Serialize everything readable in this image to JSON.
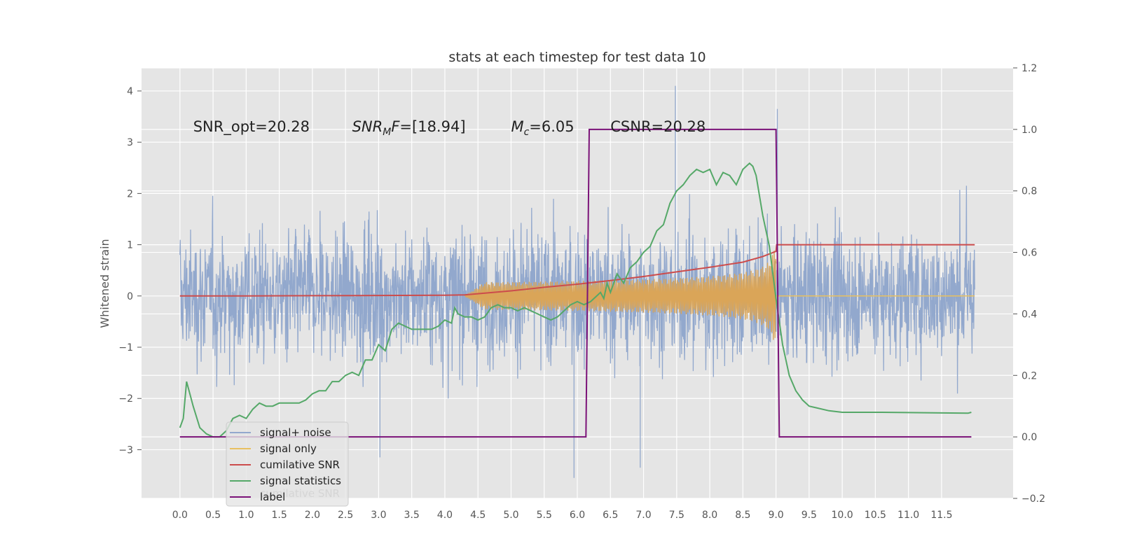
{
  "chart_data": {
    "type": "line",
    "title": "stats at each timestep for test data 10",
    "ylabel": "Whitened strain",
    "xlim": [
      -0.58,
      12.58
    ],
    "ylim": [
      -3.95,
      4.45
    ],
    "y2lim": [
      -0.2,
      1.2
    ],
    "xticks": [
      0.0,
      0.5,
      1.0,
      1.5,
      2.0,
      2.5,
      3.0,
      3.5,
      4.0,
      4.5,
      5.0,
      5.5,
      6.0,
      6.5,
      7.0,
      7.5,
      8.0,
      8.5,
      9.0,
      9.5,
      10.0,
      10.5,
      11.0,
      11.5
    ],
    "xtick_labels": [
      "0.0",
      "0.5",
      "1.0",
      "1.5",
      "2.0",
      "2.5",
      "3.0",
      "3.5",
      "4.0",
      "4.5",
      "5.0",
      "5.5",
      "6.0",
      "6.5",
      "7.0",
      "7.5",
      "8.0",
      "8.5",
      "9.0",
      "9.5",
      "10.0",
      "10.5",
      "11.0",
      "11.5"
    ],
    "yticks": [
      -3,
      -2,
      -1,
      0,
      1,
      2,
      3,
      4
    ],
    "ytick_labels": [
      "−3",
      "−2",
      "−1",
      "0",
      "1",
      "2",
      "3",
      "4"
    ],
    "y2ticks": [
      -0.2,
      0.0,
      0.2,
      0.4,
      0.6,
      0.8,
      1.0,
      1.2
    ],
    "y2tick_labels": [
      "−0.2",
      "0.0",
      "0.2",
      "0.4",
      "0.6",
      "0.8",
      "1.0",
      "1.2"
    ],
    "grid": true,
    "legend_placement": "lower-left",
    "annotations": [
      {
        "text": "SNR_opt=20.28",
        "x": 0.2,
        "y": 3.3
      },
      {
        "text": "SNR_M F=[18.94]",
        "x": 2.6,
        "y": 3.3
      },
      {
        "text": "M_c=6.05",
        "x": 5.0,
        "y": 3.3
      },
      {
        "text": "CSNR=20.28",
        "x": 6.5,
        "y": 3.3
      }
    ],
    "noise": {
      "x_start": 0.0,
      "x_end": 12.0,
      "typical_band": [
        -2.3,
        2.3
      ],
      "extreme_max": 4.1,
      "extreme_min": -3.55,
      "color": "#92a8cd"
    },
    "signal_only": {
      "x_start": 4.3,
      "merger_x": 9.0,
      "peak_amplitude": 1.05,
      "color": "#daa558"
    },
    "series": [
      {
        "name": "cumilative SNR",
        "axis": "left",
        "color": "#cc4c4c",
        "x": [
          0.0,
          1.0,
          2.0,
          3.0,
          4.0,
          4.3,
          5.0,
          5.5,
          6.0,
          6.5,
          7.0,
          7.5,
          8.0,
          8.5,
          8.8,
          9.0,
          9.01,
          12.0
        ],
        "y": [
          0.0,
          0.0,
          0.005,
          0.01,
          0.015,
          0.02,
          0.1,
          0.17,
          0.23,
          0.3,
          0.38,
          0.47,
          0.56,
          0.66,
          0.77,
          0.87,
          1.0,
          1.0
        ]
      },
      {
        "name": "signal statistics",
        "axis": "right",
        "color": "#55a868",
        "x": [
          0.0,
          0.05,
          0.1,
          0.15,
          0.2,
          0.3,
          0.4,
          0.5,
          0.6,
          0.7,
          0.8,
          0.9,
          1.0,
          1.1,
          1.2,
          1.3,
          1.4,
          1.5,
          1.6,
          1.7,
          1.8,
          1.9,
          2.0,
          2.1,
          2.2,
          2.3,
          2.4,
          2.5,
          2.6,
          2.7,
          2.8,
          2.9,
          3.0,
          3.1,
          3.2,
          3.3,
          3.4,
          3.5,
          3.6,
          3.7,
          3.8,
          3.9,
          4.0,
          4.1,
          4.15,
          4.2,
          4.3,
          4.4,
          4.5,
          4.6,
          4.7,
          4.8,
          4.9,
          5.0,
          5.1,
          5.2,
          5.3,
          5.4,
          5.5,
          5.6,
          5.7,
          5.8,
          5.9,
          6.0,
          6.1,
          6.2,
          6.3,
          6.35,
          6.4,
          6.45,
          6.5,
          6.6,
          6.7,
          6.8,
          6.9,
          7.0,
          7.1,
          7.2,
          7.3,
          7.4,
          7.5,
          7.6,
          7.7,
          7.8,
          7.9,
          8.0,
          8.1,
          8.2,
          8.3,
          8.4,
          8.5,
          8.6,
          8.65,
          8.7,
          8.8,
          8.9,
          9.0,
          9.1,
          9.2,
          9.3,
          9.4,
          9.5,
          9.6,
          9.8,
          10.0,
          10.3,
          10.6,
          11.0,
          11.5,
          11.9,
          11.95
        ],
        "y": [
          0.03,
          0.06,
          0.18,
          0.14,
          0.1,
          0.03,
          0.01,
          0.0,
          0.0,
          0.02,
          0.06,
          0.07,
          0.06,
          0.09,
          0.11,
          0.1,
          0.1,
          0.11,
          0.11,
          0.11,
          0.11,
          0.12,
          0.14,
          0.15,
          0.15,
          0.18,
          0.18,
          0.2,
          0.21,
          0.2,
          0.25,
          0.25,
          0.3,
          0.28,
          0.35,
          0.37,
          0.36,
          0.35,
          0.35,
          0.35,
          0.35,
          0.36,
          0.38,
          0.37,
          0.42,
          0.4,
          0.39,
          0.39,
          0.38,
          0.39,
          0.42,
          0.43,
          0.42,
          0.42,
          0.41,
          0.42,
          0.41,
          0.4,
          0.39,
          0.38,
          0.39,
          0.41,
          0.43,
          0.44,
          0.43,
          0.44,
          0.46,
          0.47,
          0.45,
          0.5,
          0.47,
          0.53,
          0.5,
          0.55,
          0.57,
          0.6,
          0.62,
          0.67,
          0.69,
          0.76,
          0.8,
          0.82,
          0.85,
          0.87,
          0.86,
          0.87,
          0.82,
          0.86,
          0.85,
          0.82,
          0.87,
          0.89,
          0.88,
          0.85,
          0.72,
          0.62,
          0.45,
          0.3,
          0.2,
          0.15,
          0.12,
          0.1,
          0.095,
          0.085,
          0.08,
          0.08,
          0.08,
          0.079,
          0.078,
          0.077,
          0.08
        ]
      },
      {
        "name": "label",
        "axis": "right",
        "color": "#7b1278",
        "x": [
          0.0,
          6.13,
          6.18,
          9.0,
          9.05,
          11.95
        ],
        "y": [
          0.0,
          0.0,
          1.0,
          1.0,
          0.0,
          0.0
        ]
      }
    ],
    "legend": [
      {
        "label": "signal+ noise",
        "color": "#92a8cd"
      },
      {
        "label": "signal only",
        "color": "#e8c060"
      },
      {
        "label": "cumilative SNR",
        "color": "#cc4c4c"
      },
      {
        "label": "signal statistics",
        "color": "#55a868"
      },
      {
        "label": "label",
        "color": "#7b1278"
      }
    ],
    "legend_overlap_text": "cumilative SNR"
  }
}
